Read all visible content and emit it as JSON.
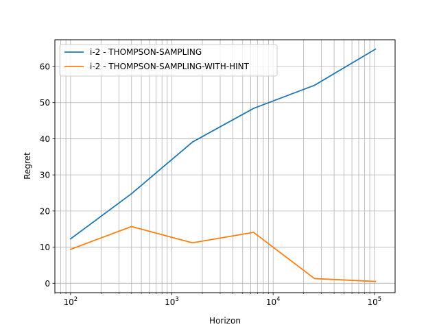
{
  "chart_data": {
    "type": "line",
    "xscale": "log",
    "xlim": [
      70,
      160000
    ],
    "ylim": [
      -2.6,
      67.4
    ],
    "xlabel": "Horizon",
    "ylabel": "Regret",
    "grid": true,
    "grid_minor_x": true,
    "legend_position": "top-left",
    "x_ticks": [
      {
        "value": 100,
        "base": "10",
        "exp": "2"
      },
      {
        "value": 1000,
        "base": "10",
        "exp": "3"
      },
      {
        "value": 10000,
        "base": "10",
        "exp": "4"
      },
      {
        "value": 100000,
        "base": "10",
        "exp": "5"
      }
    ],
    "y_ticks": [
      {
        "value": 0,
        "label": "0"
      },
      {
        "value": 10,
        "label": "10"
      },
      {
        "value": 20,
        "label": "20"
      },
      {
        "value": 30,
        "label": "30"
      },
      {
        "value": 40,
        "label": "40"
      },
      {
        "value": 50,
        "label": "50"
      },
      {
        "value": 60,
        "label": "60"
      }
    ],
    "series": [
      {
        "name": "i-2 - THOMPSON-SAMPLING",
        "color": "#1f77b4",
        "x": [
          100,
          400,
          1600,
          6400,
          25600,
          102400
        ],
        "y": [
          12.3,
          24.8,
          39.1,
          48.4,
          54.8,
          64.8
        ]
      },
      {
        "name": "i-2 - THOMPSON-SAMPLING-WITH-HINT",
        "color": "#ff7f0e",
        "x": [
          100,
          400,
          1600,
          6400,
          25600,
          102400
        ],
        "y": [
          9.4,
          15.7,
          11.2,
          14.1,
          1.3,
          0.5
        ]
      }
    ]
  }
}
